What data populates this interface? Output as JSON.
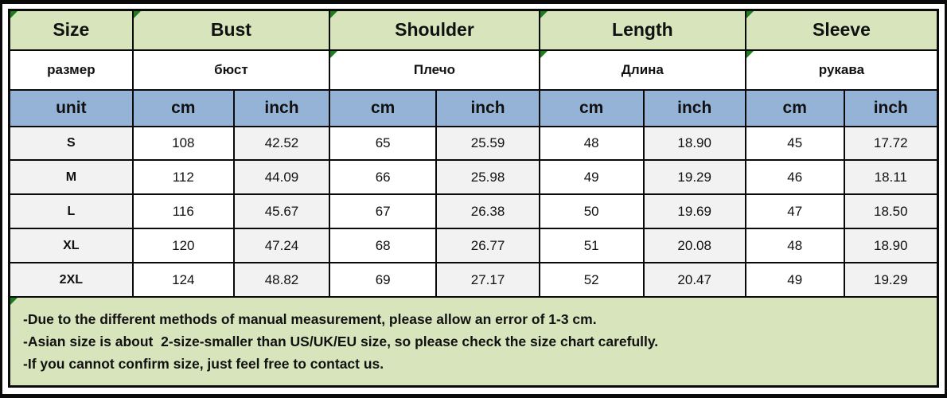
{
  "colors": {
    "header_green": "#d7e4bc",
    "unit_blue": "#95b3d7",
    "row_gray": "#f2f2f2",
    "marker_green": "#1f7c1f",
    "border_black": "#0a0a0a"
  },
  "table": {
    "header_en": {
      "size": "Size",
      "bust": "Bust",
      "shoulder": "Shoulder",
      "length": "Length",
      "sleeve": "Sleeve"
    },
    "header_ru": {
      "size": "размер",
      "bust": "бюст",
      "shoulder": "Плечо",
      "length": "Длина",
      "sleeve": "рукава"
    },
    "unit_row": {
      "label": "unit",
      "cm": "cm",
      "inch": "inch"
    },
    "column_keys": [
      "size",
      "bust_cm",
      "bust_inch",
      "shoulder_cm",
      "shoulder_inch",
      "length_cm",
      "length_inch",
      "sleeve_cm",
      "sleeve_inch"
    ],
    "rows": [
      {
        "size": "S",
        "bust_cm": "108",
        "bust_inch": "42.52",
        "shoulder_cm": "65",
        "shoulder_inch": "25.59",
        "length_cm": "48",
        "length_inch": "18.90",
        "sleeve_cm": "45",
        "sleeve_inch": "17.72"
      },
      {
        "size": "M",
        "bust_cm": "112",
        "bust_inch": "44.09",
        "shoulder_cm": "66",
        "shoulder_inch": "25.98",
        "length_cm": "49",
        "length_inch": "19.29",
        "sleeve_cm": "46",
        "sleeve_inch": "18.11"
      },
      {
        "size": "L",
        "bust_cm": "116",
        "bust_inch": "45.67",
        "shoulder_cm": "67",
        "shoulder_inch": "26.38",
        "length_cm": "50",
        "length_inch": "19.69",
        "sleeve_cm": "47",
        "sleeve_inch": "18.50"
      },
      {
        "size": "XL",
        "bust_cm": "120",
        "bust_inch": "47.24",
        "shoulder_cm": "68",
        "shoulder_inch": "26.77",
        "length_cm": "51",
        "length_inch": "20.08",
        "sleeve_cm": "48",
        "sleeve_inch": "18.90"
      },
      {
        "size": "2XL",
        "bust_cm": "124",
        "bust_inch": "48.82",
        "shoulder_cm": "69",
        "shoulder_inch": "27.17",
        "length_cm": "52",
        "length_inch": "20.47",
        "sleeve_cm": "49",
        "sleeve_inch": "19.29"
      }
    ],
    "notes": [
      "-Due to the different methods of manual measurement, please allow an error of 1-3 cm.",
      "-Asian size is about  2-size-smaller than US/UK/EU size, so please check the size chart carefully.",
      "-If you cannot confirm size, just feel free to contact us."
    ]
  }
}
